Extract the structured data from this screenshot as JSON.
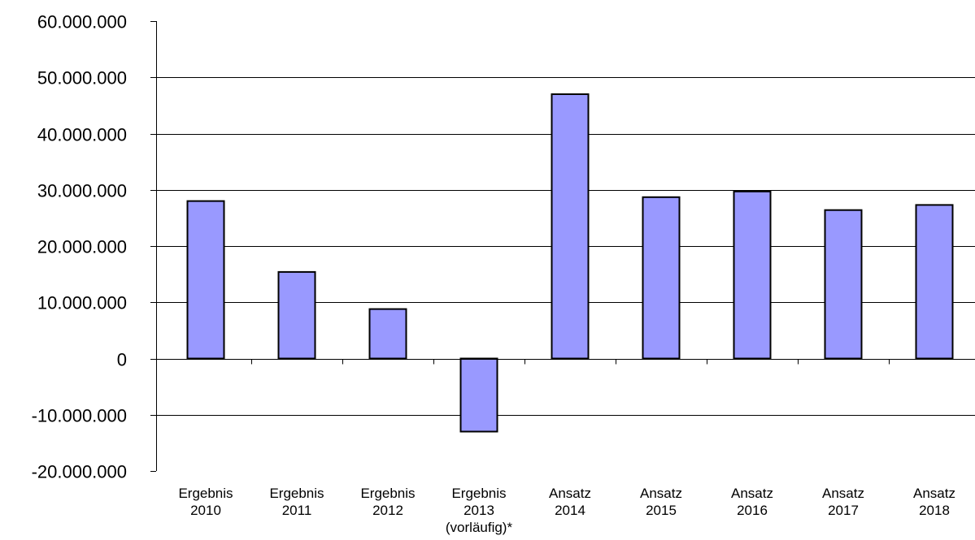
{
  "chart_data": {
    "type": "bar",
    "title": "",
    "xlabel": "",
    "ylabel": "",
    "ylim": [
      -20000000,
      60000000
    ],
    "y_ticks": [
      -20000000,
      -10000000,
      0,
      10000000,
      20000000,
      30000000,
      40000000,
      50000000,
      60000000
    ],
    "y_tick_labels": [
      "-20.000.000",
      "-10.000.000",
      "0",
      "10.000.000",
      "20.000.000",
      "30.000.000",
      "40.000.000",
      "50.000.000",
      "60.000.000"
    ],
    "grid": true,
    "legend": "none",
    "bar_color": "#9999ff",
    "bar_edge_color": "#000000",
    "categories": [
      [
        "Ergebnis",
        "2010"
      ],
      [
        "Ergebnis",
        "2011"
      ],
      [
        "Ergebnis",
        "2012"
      ],
      [
        "Ergebnis",
        "2013",
        "(vorläufig)*"
      ],
      [
        "Ansatz",
        "2014"
      ],
      [
        "Ansatz",
        "2015"
      ],
      [
        "Ansatz",
        "2016"
      ],
      [
        "Ansatz",
        "2017"
      ],
      [
        "Ansatz",
        "2018"
      ]
    ],
    "values": [
      28000000,
      15400000,
      8800000,
      -13000000,
      47000000,
      28700000,
      29700000,
      26400000,
      27300000
    ]
  }
}
